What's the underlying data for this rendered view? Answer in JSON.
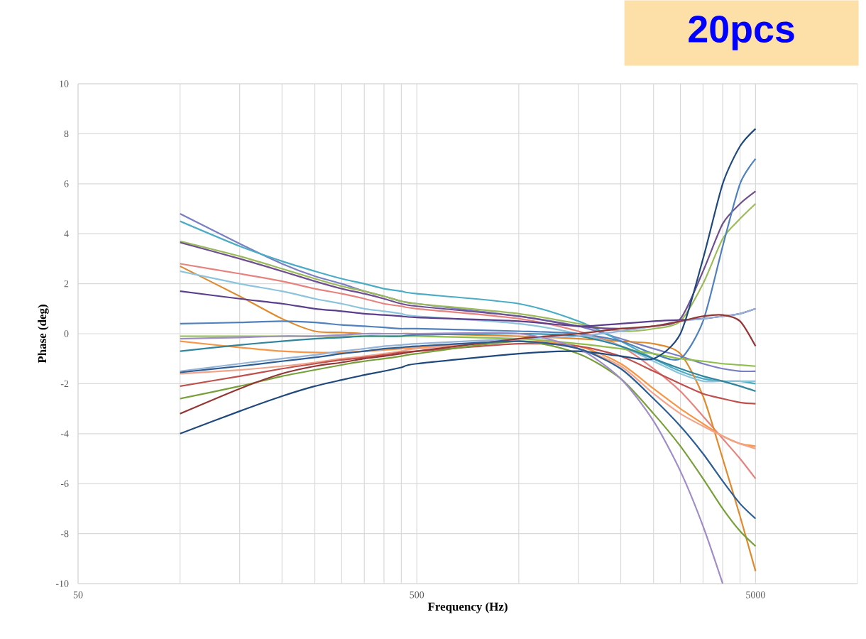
{
  "chart_data": {
    "type": "line",
    "xlabel": "Frequency (Hz)",
    "ylabel": "Phase (deg)",
    "annotations": [
      "20pcs"
    ],
    "log": "x",
    "grid": true,
    "xlim": [
      50,
      10000
    ],
    "ylim": [
      -10,
      10
    ],
    "xticks": [
      50,
      {
        "value": 100,
        "label": null
      },
      {
        "value": 150,
        "label": null
      },
      {
        "value": 200,
        "label": null
      },
      {
        "value": 250,
        "label": null
      },
      {
        "value": 300,
        "label": null
      },
      {
        "value": 350,
        "label": null
      },
      {
        "value": 400,
        "label": null
      },
      {
        "value": 450,
        "label": null
      },
      500,
      {
        "value": 1000,
        "label": null
      },
      {
        "value": 1500,
        "label": null
      },
      {
        "value": 2000,
        "label": null
      },
      {
        "value": 2500,
        "label": null
      },
      {
        "value": 3000,
        "label": null
      },
      {
        "value": 3500,
        "label": null
      },
      {
        "value": 4000,
        "label": null
      },
      {
        "value": 4500,
        "label": null
      },
      5000
    ],
    "yticks": [
      -10,
      -8,
      -6,
      -4,
      -2,
      0,
      2,
      4,
      6,
      8,
      10
    ],
    "x": [
      100,
      150,
      200,
      250,
      300,
      350,
      400,
      450,
      500,
      1000,
      1500,
      2000,
      2500,
      3000,
      3500,
      4000,
      4500,
      5000
    ],
    "series": [
      {
        "color": "#7a7fc4",
        "values": [
          4.8,
          3.6,
          2.8,
          2.3,
          2.0,
          1.7,
          1.5,
          1.3,
          1.2,
          0.7,
          0.3,
          -0.2,
          -0.6,
          -0.9,
          -1.2,
          -1.4,
          -1.5,
          -1.5
        ]
      },
      {
        "color": "#4bacc6",
        "values": [
          4.5,
          3.5,
          2.9,
          2.5,
          2.2,
          2.0,
          1.8,
          1.7,
          1.6,
          1.2,
          0.5,
          -0.3,
          -1.0,
          -1.5,
          -1.8,
          -1.9,
          -1.9,
          -2.0
        ]
      },
      {
        "color": "#9bbb59",
        "values": [
          3.7,
          3.1,
          2.6,
          2.2,
          1.9,
          1.7,
          1.5,
          1.3,
          1.2,
          0.8,
          0.4,
          0.1,
          0.2,
          0.5,
          2.0,
          3.8,
          4.6,
          5.2
        ]
      },
      {
        "color": "#6f4f8f",
        "values": [
          3.65,
          3.0,
          2.5,
          2.1,
          1.8,
          1.6,
          1.4,
          1.2,
          1.1,
          0.7,
          0.3,
          0.2,
          0.3,
          0.6,
          2.5,
          4.4,
          5.2,
          5.7
        ]
      },
      {
        "color": "#e6837e",
        "values": [
          2.8,
          2.4,
          2.1,
          1.8,
          1.6,
          1.4,
          1.2,
          1.1,
          1.0,
          0.6,
          0.1,
          -0.5,
          -1.4,
          -2.3,
          -3.3,
          -4.2,
          -5.0,
          -5.8
        ]
      },
      {
        "color": "#e08a2e",
        "values": [
          2.7,
          1.5,
          0.6,
          0.1,
          0.05,
          0.0,
          0.0,
          0.0,
          0.0,
          -0.1,
          -0.2,
          -0.3,
          -0.4,
          -0.8,
          -2.5,
          -5.0,
          -7.3,
          -9.5
        ]
      },
      {
        "color": "#8cc4dc",
        "values": [
          2.5,
          2.0,
          1.7,
          1.4,
          1.2,
          1.0,
          0.9,
          0.8,
          0.7,
          0.4,
          0.0,
          -0.5,
          -1.1,
          -1.6,
          -1.9,
          -1.9,
          -1.9,
          -1.9
        ]
      },
      {
        "color": "#5b3f8c",
        "values": [
          1.7,
          1.4,
          1.2,
          1.0,
          0.9,
          0.8,
          0.75,
          0.7,
          0.65,
          0.5,
          0.3,
          0.4,
          0.5,
          0.55,
          0.6,
          0.7,
          0.8,
          1.0
        ]
      },
      {
        "color": "#4f81bd",
        "values": [
          0.4,
          0.45,
          0.5,
          0.45,
          0.35,
          0.3,
          0.25,
          0.2,
          0.2,
          0.1,
          0.0,
          -0.3,
          -0.8,
          -1.0,
          0.5,
          3.5,
          6.0,
          7.0
        ]
      },
      {
        "color": "#8fbf4a",
        "values": [
          -0.1,
          -0.1,
          -0.1,
          -0.1,
          -0.1,
          -0.1,
          -0.1,
          -0.1,
          -0.1,
          -0.2,
          -0.4,
          -0.6,
          -0.8,
          -1.0,
          -1.1,
          -1.2,
          -1.25,
          -1.3
        ]
      },
      {
        "color": "#f79646",
        "values": [
          -0.3,
          -0.55,
          -0.7,
          -0.75,
          -0.75,
          -0.7,
          -0.65,
          -0.6,
          -0.55,
          -0.3,
          -0.5,
          -1.2,
          -2.2,
          -3.0,
          -3.6,
          -4.1,
          -4.4,
          -4.5
        ]
      },
      {
        "color": "#31859c",
        "values": [
          -0.7,
          -0.45,
          -0.3,
          -0.2,
          -0.15,
          -0.1,
          -0.1,
          -0.1,
          -0.05,
          0.0,
          -0.1,
          -0.5,
          -1.0,
          -1.4,
          -1.7,
          -1.9,
          -2.1,
          -2.3
        ]
      },
      {
        "color": "#95b3d7",
        "values": [
          -1.5,
          -1.2,
          -1.0,
          -0.85,
          -0.7,
          -0.6,
          -0.5,
          -0.45,
          -0.4,
          -0.2,
          -0.1,
          0.1,
          0.3,
          0.5,
          0.6,
          0.7,
          0.8,
          1.0
        ]
      },
      {
        "color": "#f2a38a",
        "values": [
          -1.6,
          -1.45,
          -1.3,
          -1.15,
          -1.0,
          -0.9,
          -0.8,
          -0.7,
          -0.6,
          -0.3,
          -0.6,
          -1.3,
          -2.4,
          -3.2,
          -3.7,
          -4.1,
          -4.4,
          -4.6
        ]
      },
      {
        "color": "#c0504d",
        "values": [
          -2.1,
          -1.7,
          -1.4,
          -1.2,
          -1.05,
          -0.95,
          -0.85,
          -0.75,
          -0.7,
          -0.4,
          -0.5,
          -0.9,
          -1.5,
          -2.0,
          -2.4,
          -2.6,
          -2.75,
          -2.8
        ]
      },
      {
        "color": "#77a03a",
        "values": [
          -2.6,
          -2.1,
          -1.7,
          -1.45,
          -1.25,
          -1.1,
          -1.0,
          -0.9,
          -0.8,
          -0.3,
          -0.8,
          -1.8,
          -3.2,
          -4.5,
          -5.8,
          -7.0,
          -7.9,
          -8.5
        ]
      },
      {
        "color": "#943634",
        "values": [
          -3.2,
          -2.2,
          -1.6,
          -1.3,
          -1.15,
          -1.0,
          -0.9,
          -0.8,
          -0.7,
          -0.2,
          0.0,
          0.2,
          0.3,
          0.5,
          0.7,
          0.75,
          0.5,
          -0.5
        ]
      },
      {
        "color": "#1f497d",
        "values": [
          -4.0,
          -3.1,
          -2.5,
          -2.1,
          -1.85,
          -1.65,
          -1.5,
          -1.35,
          -1.2,
          -0.8,
          -0.7,
          -0.9,
          -1.0,
          0.0,
          3.0,
          6.0,
          7.5,
          8.2
        ]
      },
      {
        "color": "#a08cc8",
        "values": [
          -0.2,
          -0.15,
          -0.1,
          -0.1,
          -0.05,
          0.0,
          0.0,
          0.0,
          0.0,
          0.0,
          -0.6,
          -1.8,
          -3.5,
          -5.5,
          -7.7,
          -10.0,
          null,
          null
        ]
      },
      {
        "color": "#2c5d95",
        "values": [
          -1.55,
          -1.3,
          -1.1,
          -0.95,
          -0.8,
          -0.7,
          -0.6,
          -0.55,
          -0.5,
          -0.3,
          -0.6,
          -1.4,
          -2.6,
          -3.7,
          -4.8,
          -5.9,
          -6.8,
          -7.4
        ]
      }
    ]
  }
}
